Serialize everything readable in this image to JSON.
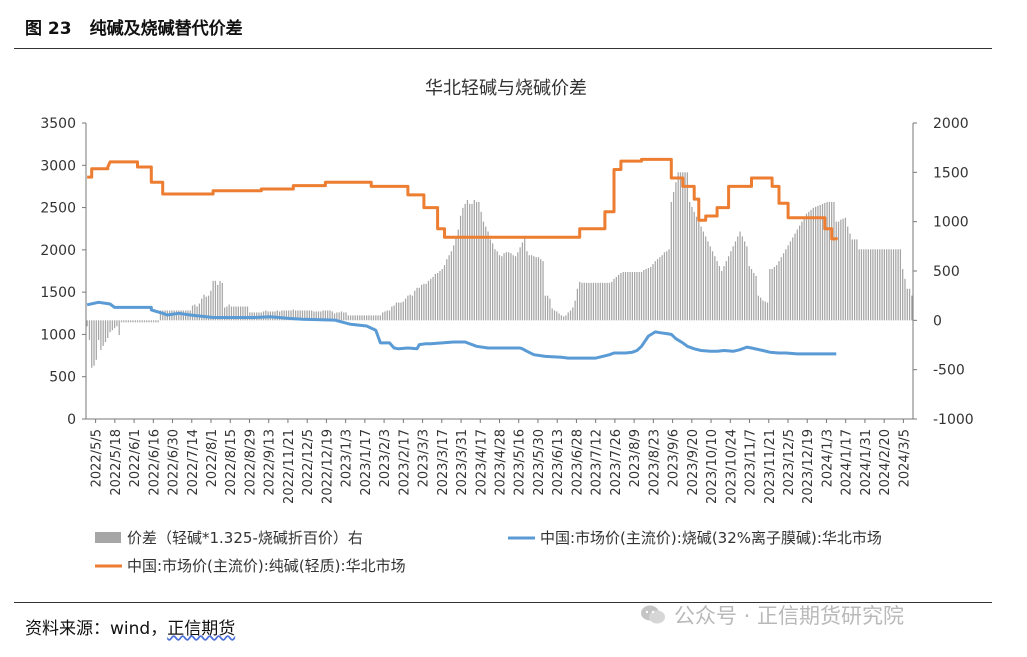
{
  "figure": {
    "number": "图 23",
    "title": "纯碱及烧碱替代价差",
    "source_prefix": "资料来源：wind，",
    "source_link": "正信期货",
    "watermark": "公众号 · 正信期货研究院"
  },
  "chart_data": {
    "type": "bar+line",
    "title": "华北轻碱与烧碱价差",
    "left_axis": {
      "ylim": [
        0,
        3500
      ],
      "ticks": [
        0,
        500,
        1000,
        1500,
        2000,
        2500,
        3000,
        3500
      ]
    },
    "right_axis": {
      "ylim": [
        -1000,
        2000
      ],
      "ticks": [
        -1000,
        -500,
        0,
        500,
        1000,
        1500,
        2000
      ]
    },
    "x_tick_labels": [
      "2022/5/5",
      "2022/5/18",
      "2022/6/1",
      "2022/6/16",
      "2022/6/30",
      "2022/7/14",
      "2022/8/1",
      "2022/8/15",
      "2022/8/29",
      "2022/9/13",
      "2022/11/21",
      "2022/12/5",
      "2022/12/19",
      "2023/1/3",
      "2023/1/17",
      "2023/2/3",
      "2023/2/17",
      "2023/3/3",
      "2023/3/17",
      "2023/3/31",
      "2023/4/17",
      "2023/4/28",
      "2023/5/16",
      "2023/5/30",
      "2023/6/13",
      "2023/6/28",
      "2023/7/12",
      "2023/7/26",
      "2023/8/9",
      "2023/8/23",
      "2023/9/6",
      "2023/9/20",
      "2023/10/10",
      "2023/10/24",
      "2023/11/7",
      "2023/11/21",
      "2023/12/5",
      "2023/12/19",
      "2024/1/3",
      "2024/1/17",
      "2024/1/31",
      "2024/2/20",
      "2024/3/5"
    ],
    "legend": [
      {
        "name": "价差（轻碱*1.325-烧碱折百价）右",
        "color": "#a6a6a6",
        "kind": "bar"
      },
      {
        "name": "中国:市场价(主流价):烧碱(32%离子膜碱):华北市场",
        "color": "#5b9bd5",
        "kind": "line"
      },
      {
        "name": "中国:市场价(主流价):纯碱(轻质):华北市场",
        "color": "#ed7d31",
        "kind": "line"
      }
    ],
    "series": {
      "soda_light": {
        "axis": "left",
        "points": [
          [
            0,
            2860
          ],
          [
            2,
            2860
          ],
          [
            2,
            2960
          ],
          [
            9,
            2960
          ],
          [
            9,
            2980
          ],
          [
            10,
            3040
          ],
          [
            22,
            3040
          ],
          [
            22,
            2980
          ],
          [
            28,
            2980
          ],
          [
            28,
            2800
          ],
          [
            33,
            2800
          ],
          [
            33,
            2660
          ],
          [
            55,
            2660
          ],
          [
            55,
            2700
          ],
          [
            76,
            2700
          ],
          [
            76,
            2720
          ],
          [
            90,
            2720
          ],
          [
            90,
            2760
          ],
          [
            104,
            2760
          ],
          [
            104,
            2800
          ],
          [
            124,
            2800
          ],
          [
            124,
            2750
          ],
          [
            140,
            2750
          ],
          [
            140,
            2650
          ],
          [
            147,
            2650
          ],
          [
            147,
            2500
          ],
          [
            153,
            2500
          ],
          [
            153,
            2250
          ],
          [
            156,
            2250
          ],
          [
            156,
            2150
          ],
          [
            215,
            2150
          ],
          [
            215,
            2250
          ],
          [
            226,
            2250
          ],
          [
            226,
            2450
          ],
          [
            230,
            2450
          ],
          [
            230,
            2950
          ],
          [
            233,
            2950
          ],
          [
            233,
            3050
          ],
          [
            242,
            3050
          ],
          [
            242,
            3070
          ],
          [
            255,
            3070
          ],
          [
            255,
            2850
          ],
          [
            260,
            2850
          ],
          [
            260,
            2750
          ],
          [
            265,
            2750
          ],
          [
            265,
            2600
          ],
          [
            267,
            2600
          ],
          [
            267,
            2350
          ],
          [
            270,
            2350
          ],
          [
            270,
            2400
          ],
          [
            275,
            2400
          ],
          [
            275,
            2500
          ],
          [
            280,
            2500
          ],
          [
            280,
            2750
          ],
          [
            290,
            2750
          ],
          [
            290,
            2850
          ],
          [
            299,
            2850
          ],
          [
            299,
            2750
          ],
          [
            302,
            2750
          ],
          [
            302,
            2550
          ],
          [
            306,
            2550
          ],
          [
            306,
            2380
          ],
          [
            322,
            2380
          ],
          [
            322,
            2250
          ],
          [
            325,
            2250
          ],
          [
            325,
            2130
          ],
          [
            327,
            2130
          ],
          [
            327,
            2150
          ]
        ]
      },
      "caustic": {
        "axis": "left",
        "points": [
          [
            0,
            1350
          ],
          [
            5,
            1380
          ],
          [
            10,
            1360
          ],
          [
            12,
            1320
          ],
          [
            28,
            1320
          ],
          [
            28,
            1290
          ],
          [
            33,
            1250
          ],
          [
            35,
            1230
          ],
          [
            40,
            1250
          ],
          [
            45,
            1230
          ],
          [
            55,
            1200
          ],
          [
            73,
            1200
          ],
          [
            80,
            1210
          ],
          [
            88,
            1190
          ],
          [
            94,
            1180
          ],
          [
            108,
            1170
          ],
          [
            115,
            1120
          ],
          [
            122,
            1100
          ],
          [
            126,
            1050
          ],
          [
            128,
            900
          ],
          [
            132,
            900
          ],
          [
            134,
            840
          ],
          [
            136,
            830
          ],
          [
            140,
            840
          ],
          [
            144,
            830
          ],
          [
            145,
            880
          ],
          [
            148,
            890
          ],
          [
            150,
            890
          ],
          [
            155,
            900
          ],
          [
            160,
            910
          ],
          [
            165,
            910
          ],
          [
            170,
            860
          ],
          [
            175,
            840
          ],
          [
            180,
            840
          ],
          [
            186,
            840
          ],
          [
            189,
            840
          ],
          [
            190,
            830
          ],
          [
            192,
            800
          ],
          [
            195,
            760
          ],
          [
            200,
            740
          ],
          [
            207,
            730
          ],
          [
            210,
            720
          ],
          [
            215,
            720
          ],
          [
            222,
            720
          ],
          [
            225,
            740
          ],
          [
            228,
            760
          ],
          [
            230,
            780
          ],
          [
            235,
            780
          ],
          [
            238,
            790
          ],
          [
            240,
            810
          ],
          [
            242,
            860
          ],
          [
            245,
            980
          ],
          [
            248,
            1030
          ],
          [
            250,
            1020
          ],
          [
            253,
            1010
          ],
          [
            255,
            1000
          ],
          [
            257,
            950
          ],
          [
            260,
            900
          ],
          [
            262,
            860
          ],
          [
            265,
            830
          ],
          [
            268,
            810
          ],
          [
            272,
            800
          ],
          [
            275,
            800
          ],
          [
            278,
            810
          ],
          [
            282,
            800
          ],
          [
            285,
            820
          ],
          [
            288,
            850
          ],
          [
            290,
            840
          ],
          [
            295,
            810
          ],
          [
            298,
            790
          ],
          [
            302,
            780
          ],
          [
            305,
            780
          ],
          [
            310,
            770
          ],
          [
            315,
            770
          ],
          [
            320,
            770
          ],
          [
            327,
            770
          ]
        ]
      },
      "spread": {
        "axis": "right",
        "values": [
          -60,
          -200,
          -480,
          -460,
          -400,
          -200,
          -300,
          -260,
          -220,
          -180,
          -120,
          -100,
          -80,
          -60,
          -150,
          -20,
          -20,
          -20,
          -20,
          -20,
          -20,
          -20,
          -20,
          -20,
          -20,
          -20,
          -20,
          -20,
          -20,
          -20,
          -20,
          -20,
          100,
          100,
          100,
          100,
          100,
          100,
          100,
          100,
          100,
          100,
          100,
          100,
          100,
          100,
          150,
          160,
          140,
          170,
          220,
          260,
          240,
          250,
          300,
          400,
          400,
          360,
          400,
          380,
          130,
          140,
          160,
          140,
          140,
          140,
          140,
          140,
          140,
          140,
          140,
          80,
          80,
          80,
          80,
          80,
          80,
          90,
          100,
          90,
          90,
          90,
          90,
          100,
          90,
          100,
          100,
          100,
          100,
          100,
          110,
          100,
          100,
          100,
          100,
          100,
          100,
          100,
          100,
          90,
          90,
          90,
          90,
          100,
          100,
          100,
          100,
          90,
          70,
          80,
          80,
          90,
          80,
          80,
          50,
          50,
          50,
          50,
          50,
          50,
          50,
          50,
          50,
          50,
          50,
          50,
          50,
          50,
          50,
          80,
          90,
          100,
          100,
          140,
          150,
          180,
          180,
          180,
          190,
          220,
          250,
          260,
          250,
          300,
          330,
          330,
          360,
          370,
          370,
          400,
          420,
          440,
          470,
          480,
          500,
          520,
          560,
          620,
          660,
          700,
          760,
          840,
          920,
          1060,
          1140,
          1180,
          1220,
          1180,
          1180,
          1220,
          1200,
          1200,
          1100,
          1000,
          950,
          900,
          820,
          780,
          720,
          700,
          660,
          650,
          680,
          690,
          690,
          680,
          660,
          650,
          690,
          740,
          790,
          830,
          700,
          660,
          660,
          650,
          640,
          640,
          620,
          600,
          250,
          250,
          220,
          120,
          100,
          90,
          70,
          50,
          40,
          50,
          80,
          100,
          130,
          200,
          320,
          390,
          380,
          380,
          380,
          380,
          380,
          380,
          380,
          380,
          380,
          380,
          380,
          380,
          380,
          390,
          420,
          440,
          460,
          480,
          490,
          490,
          490,
          490,
          490,
          490,
          490,
          490,
          490,
          510,
          520,
          530,
          540,
          570,
          600,
          620,
          640,
          660,
          690,
          700,
          720,
          1200,
          1300,
          1400,
          1500,
          1500,
          1500,
          1500,
          1500,
          1200,
          1150,
          1100,
          1050,
          1000,
          950,
          900,
          850,
          800,
          750,
          700,
          650,
          600,
          550,
          500,
          550,
          600,
          650,
          700,
          750,
          800,
          850,
          900,
          850,
          800,
          750,
          550,
          520,
          480,
          450,
          250,
          230,
          200,
          190,
          180,
          520,
          520,
          540,
          560,
          600,
          640,
          680,
          720,
          760,
          800,
          840,
          880,
          920,
          960,
          1000,
          1040,
          1080,
          1100,
          1120,
          1140,
          1150,
          1160,
          1170,
          1180,
          1190,
          1200,
          1200,
          1200,
          1200,
          1000,
          1000,
          1020,
          1030,
          1040,
          950,
          880,
          820,
          820,
          820,
          720,
          720,
          720,
          720,
          720,
          720,
          720,
          720,
          720,
          720,
          720,
          720,
          720,
          720,
          720,
          720,
          720,
          720,
          720,
          520,
          420,
          320,
          320,
          250
        ]
      }
    }
  }
}
